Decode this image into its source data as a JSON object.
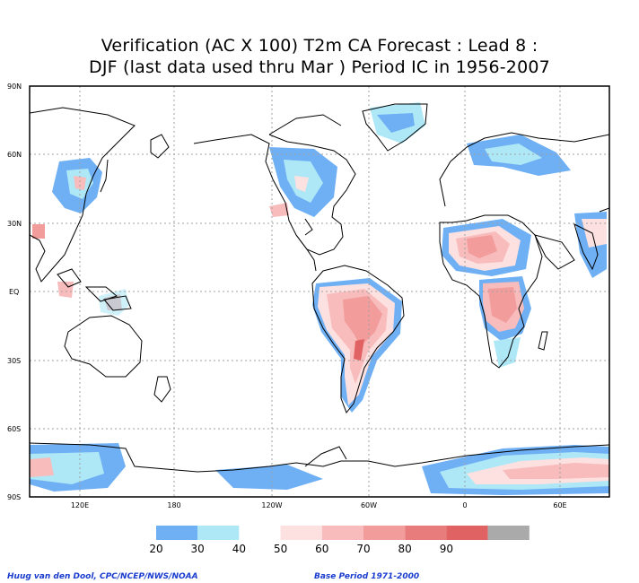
{
  "title": {
    "line1": "Verification (AC X 100) T2m CA Forecast : Lead 8 :",
    "line2": "DJF (last data used thru Mar ) Period IC in 1956-2007"
  },
  "map": {
    "lat_labels": [
      "90N",
      "60N",
      "30N",
      "EQ",
      "30S",
      "60S",
      "90S"
    ],
    "lon_labels": [
      "120E",
      "180",
      "120W",
      "60W",
      "0",
      "60E"
    ]
  },
  "legend": {
    "labels": [
      "20",
      "30",
      "40",
      "50",
      "60",
      "70",
      "80",
      "90"
    ],
    "colors": [
      "#6fb0f5",
      "#aee8f7",
      "#ffffff",
      "#fde0e0",
      "#f8bcbc",
      "#f29c9c",
      "#e87c7c",
      "#e06262",
      "#aaaaaa"
    ]
  },
  "credits": {
    "left": "Huug van den Dool, CPC/NCEP/NWS/NOAA",
    "right": "Base Period 1971-2000"
  }
}
